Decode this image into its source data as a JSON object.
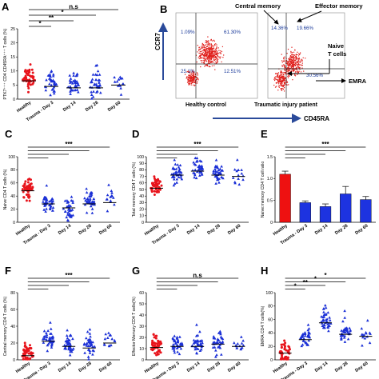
{
  "figure": {
    "colors": {
      "healthy": "#e8141c",
      "trauma": "#1a2fd6",
      "axis": "#000000",
      "bar_healthy": "#ee1111",
      "bar_trauma": "#1d33e0",
      "flow_arrow": "#2a4a9a"
    },
    "flow": {
      "letter": "B",
      "y_label": "CCR7",
      "x_label": "CD45RA",
      "left_plot": {
        "caption": "Healthy control",
        "q_tl": "1.09%",
        "q_tr": "61.30%",
        "q_br": "12.51%",
        "q_bl": "25.1%"
      },
      "right_plot": {
        "caption": "Traumatic injury patient",
        "q_tl": "14.36%",
        "q_tr": "19.66%",
        "q_br": "30.56%"
      },
      "labels": {
        "central": "Central memory",
        "effector": "Effector  memory",
        "naive1": "Naive",
        "naive2": "T cells",
        "emra": "EMRA"
      }
    }
  },
  "chart_data": [
    {
      "type": "scatter",
      "letter": "A",
      "ylabel": "PTK7⁺⁺⁺ CD4 CD45RA⁺⁺⁺ T cells (%)",
      "categories": [
        "Healthy",
        "Trauma - Day 3",
        "Day 14",
        "Day 28",
        "Day 60"
      ],
      "ylim": [
        0,
        25
      ],
      "yticks": [
        0,
        5,
        10,
        15,
        20,
        25
      ],
      "n_points": [
        50,
        35,
        38,
        38,
        14
      ],
      "medians": [
        6.5,
        4.5,
        4,
        4,
        5
      ],
      "comparisons": [
        {
          "label": "n.s",
          "to": 4
        },
        {
          "label": "*",
          "to": 3
        },
        {
          "label": "**",
          "to": 2
        },
        {
          "label": "*",
          "to": 1
        }
      ]
    },
    {
      "type": "scatter",
      "letter": "C",
      "ylabel": "Naive CD4 T cells (%)",
      "categories": [
        "Healthy",
        "Trauma - Day 3",
        "Day 14",
        "Day 28",
        "Day 60"
      ],
      "ylim": [
        0,
        100
      ],
      "yticks": [
        0,
        20,
        40,
        60,
        80,
        100
      ],
      "n_points": [
        50,
        40,
        38,
        38,
        14
      ],
      "medians": [
        48,
        28,
        22,
        28,
        30
      ],
      "comparisons": [
        {
          "label": "***",
          "to": 4
        },
        {
          "label": "",
          "to": 3
        },
        {
          "label": "",
          "to": 2
        },
        {
          "label": "",
          "to": 1
        }
      ]
    },
    {
      "type": "scatter",
      "letter": "D",
      "ylabel": "Total memory CD4 T cells (%)",
      "categories": [
        "Healthy",
        "Trauma - Day 3",
        "Day 14",
        "Day 28",
        "Day 60"
      ],
      "ylim": [
        0,
        100
      ],
      "yticks": [
        0,
        10,
        20,
        30,
        40,
        50,
        60,
        70,
        80,
        90,
        100
      ],
      "n_points": [
        50,
        40,
        38,
        38,
        14
      ],
      "medians": [
        52,
        72,
        78,
        72,
        70
      ],
      "comparisons": [
        {
          "label": "***",
          "to": 4
        },
        {
          "label": "",
          "to": 3
        },
        {
          "label": "",
          "to": 2
        },
        {
          "label": "",
          "to": 1
        }
      ]
    },
    {
      "type": "bar",
      "letter": "E",
      "ylabel": "Naive:memory CD4 T cell ratio",
      "categories": [
        "Healthy",
        "Trauma - Day 3",
        "Day 14",
        "Day 28",
        "Day 60"
      ],
      "values": [
        1.1,
        0.45,
        0.36,
        0.65,
        0.52
      ],
      "errors": [
        0.07,
        0.04,
        0.06,
        0.17,
        0.07
      ],
      "ylim": [
        0,
        1.5
      ],
      "yticks": [
        0,
        0.5,
        1.0,
        1.5
      ],
      "comparisons": [
        {
          "label": "***",
          "to": 4
        },
        {
          "label": "",
          "to": 3
        },
        {
          "label": "",
          "to": 2
        },
        {
          "label": "",
          "to": 1
        }
      ]
    },
    {
      "type": "scatter",
      "letter": "F",
      "ylabel": "Central memory CD4 T cells (%)",
      "categories": [
        "Healthy",
        "Trauma - Day 3",
        "Day 14",
        "Day 28",
        "Day 60"
      ],
      "ylim": [
        0,
        80
      ],
      "yticks": [
        0,
        20,
        40,
        60,
        80
      ],
      "n_points": [
        45,
        40,
        38,
        38,
        14
      ],
      "medians": [
        5,
        22,
        16,
        14,
        20
      ],
      "comparisons": [
        {
          "label": "***",
          "to": 4
        },
        {
          "label": "",
          "to": 3
        },
        {
          "label": "",
          "to": 2
        },
        {
          "label": "",
          "to": 1
        }
      ]
    },
    {
      "type": "scatter",
      "letter": "G",
      "ylabel": "Effector Memory CD4 T cells(%)",
      "categories": [
        "Healthy",
        "Trauma - Day 3",
        "Day 14",
        "Day 28",
        "Day 60"
      ],
      "ylim": [
        0,
        60
      ],
      "yticks": [
        0,
        10,
        20,
        30,
        40,
        50,
        60
      ],
      "n_points": [
        50,
        40,
        38,
        38,
        14
      ],
      "medians": [
        11,
        12,
        12,
        14,
        12
      ],
      "comparisons": [
        {
          "label": "n.s",
          "to": 4
        },
        {
          "label": "",
          "to": 3
        },
        {
          "label": "",
          "to": 2
        },
        {
          "label": "",
          "to": 1
        }
      ]
    },
    {
      "type": "scatter",
      "letter": "H",
      "ylabel": "EMRA CD4 T cells(%)",
      "categories": [
        "Healthy",
        "Trauma - Day 3",
        "Day 14",
        "Day 28",
        "Day 60"
      ],
      "ylim": [
        0,
        100
      ],
      "yticks": [
        0,
        20,
        40,
        60,
        80,
        100
      ],
      "n_points": [
        45,
        40,
        38,
        38,
        14
      ],
      "medians": [
        10,
        30,
        55,
        38,
        35
      ],
      "comparisons": [
        {
          "label": "*",
          "to": 4
        },
        {
          "label": "*",
          "to": 3
        },
        {
          "label": "**",
          "to": 2
        },
        {
          "label": "*",
          "to": 1
        }
      ]
    }
  ]
}
